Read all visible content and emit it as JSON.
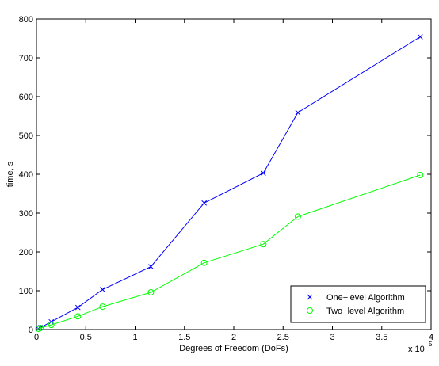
{
  "chart_data": {
    "type": "line",
    "title": "",
    "xlabel": "Degrees of Freedom (DoFs)",
    "ylabel": "time, s",
    "x_multiplier_label": "x 10",
    "x_multiplier_exp": "5",
    "xlim": [
      0,
      4
    ],
    "ylim": [
      0,
      800
    ],
    "xticks": [
      0,
      0.5,
      1,
      1.5,
      2,
      2.5,
      3,
      3.5,
      4
    ],
    "xtick_labels": [
      "0",
      "0.5",
      "1",
      "1.5",
      "2",
      "2.5",
      "3",
      "3.5",
      "4"
    ],
    "yticks": [
      0,
      100,
      200,
      300,
      400,
      500,
      600,
      700,
      800
    ],
    "ytick_labels": [
      "0",
      "100",
      "200",
      "300",
      "400",
      "500",
      "600",
      "700",
      "800"
    ],
    "grid": false,
    "legend_position": "bottom-right",
    "series": [
      {
        "name": "One−level Algorithm",
        "color": "#0000ff",
        "marker": "x",
        "x": [
          0.02,
          0.04,
          0.15,
          0.42,
          0.67,
          1.16,
          1.7,
          2.3,
          2.65,
          3.89
        ],
        "y": [
          2,
          5,
          20,
          57,
          103,
          162,
          326,
          403,
          559,
          754
        ]
      },
      {
        "name": "Two−level Algorithm",
        "color": "#00ff00",
        "marker": "circle",
        "x": [
          0.02,
          0.04,
          0.15,
          0.42,
          0.67,
          1.16,
          1.7,
          2.3,
          2.65,
          3.89
        ],
        "y": [
          2,
          4,
          12,
          34,
          59,
          96,
          172,
          220,
          291,
          398
        ]
      }
    ]
  }
}
